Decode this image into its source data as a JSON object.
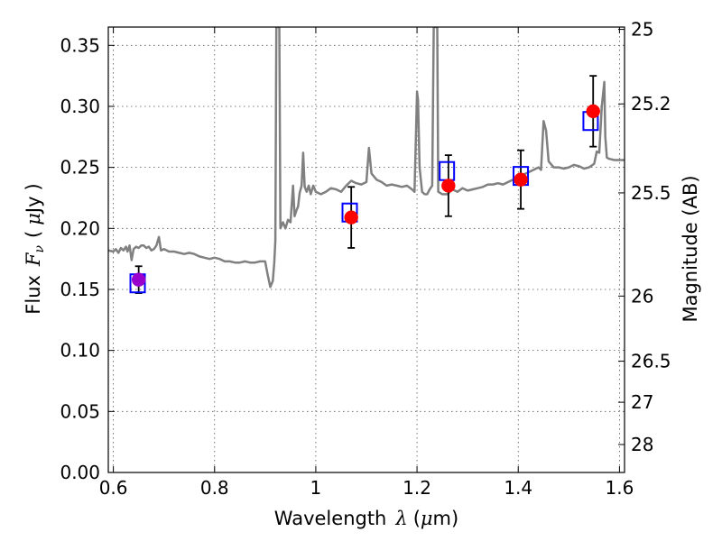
{
  "chart_data": {
    "type": "scatter",
    "title": "",
    "xlabel_parts": {
      "prefix": "Wavelength",
      "symbol": "λ",
      "unit_open": "(",
      "unit_mu": "μ",
      "unit_rest": "m)"
    },
    "ylabel_parts": {
      "prefix": "Flux",
      "symbol": "F",
      "subscript": "ν",
      "unit_open": "(",
      "unit_mu": "μ",
      "unit_rest": "Jy",
      "unit_close": ")"
    },
    "y2label": "Magnitude (AB)",
    "xlim": [
      0.59,
      1.61
    ],
    "ylim": [
      0.0,
      0.365
    ],
    "grid": true,
    "x_ticks": [
      {
        "value": 0.6,
        "label": "0.6"
      },
      {
        "value": 0.8,
        "label": "0.8"
      },
      {
        "value": 1.0,
        "label": "1"
      },
      {
        "value": 1.2,
        "label": "1.2"
      },
      {
        "value": 1.4,
        "label": "1.4"
      },
      {
        "value": 1.6,
        "label": "1.6"
      }
    ],
    "y_ticks": [
      {
        "value": 0.0,
        "label": "0.00"
      },
      {
        "value": 0.05,
        "label": "0.05"
      },
      {
        "value": 0.1,
        "label": "0.10"
      },
      {
        "value": 0.15,
        "label": "0.15"
      },
      {
        "value": 0.2,
        "label": "0.20"
      },
      {
        "value": 0.25,
        "label": "0.25"
      },
      {
        "value": 0.3,
        "label": "0.30"
      },
      {
        "value": 0.35,
        "label": "0.35"
      }
    ],
    "y2_ticks": [
      {
        "mag": 25,
        "label": "25"
      },
      {
        "mag": 25.2,
        "label": "25.2"
      },
      {
        "mag": 25.5,
        "label": "25.5"
      },
      {
        "mag": 26,
        "label": "26"
      },
      {
        "mag": 26.5,
        "label": "26.5"
      },
      {
        "mag": 27,
        "label": "27"
      },
      {
        "mag": 28,
        "label": "28"
      }
    ],
    "model_spectrum": {
      "color": "#808080",
      "points": [
        [
          0.59,
          0.182
        ],
        [
          0.6,
          0.181
        ],
        [
          0.605,
          0.183
        ],
        [
          0.61,
          0.18
        ],
        [
          0.615,
          0.184
        ],
        [
          0.62,
          0.182
        ],
        [
          0.625,
          0.185
        ],
        [
          0.628,
          0.181
        ],
        [
          0.632,
          0.186
        ],
        [
          0.636,
          0.174
        ],
        [
          0.64,
          0.183
        ],
        [
          0.645,
          0.185
        ],
        [
          0.65,
          0.184
        ],
        [
          0.655,
          0.186
        ],
        [
          0.66,
          0.186
        ],
        [
          0.665,
          0.184
        ],
        [
          0.67,
          0.185
        ],
        [
          0.675,
          0.182
        ],
        [
          0.68,
          0.183
        ],
        [
          0.685,
          0.186
        ],
        [
          0.69,
          0.193
        ],
        [
          0.694,
          0.182
        ],
        [
          0.7,
          0.183
        ],
        [
          0.71,
          0.181
        ],
        [
          0.72,
          0.181
        ],
        [
          0.73,
          0.18
        ],
        [
          0.74,
          0.179
        ],
        [
          0.75,
          0.18
        ],
        [
          0.76,
          0.179
        ],
        [
          0.77,
          0.177
        ],
        [
          0.78,
          0.176
        ],
        [
          0.79,
          0.175
        ],
        [
          0.8,
          0.176
        ],
        [
          0.81,
          0.175
        ],
        [
          0.82,
          0.173
        ],
        [
          0.83,
          0.173
        ],
        [
          0.84,
          0.172
        ],
        [
          0.85,
          0.172
        ],
        [
          0.86,
          0.173
        ],
        [
          0.87,
          0.172
        ],
        [
          0.88,
          0.172
        ],
        [
          0.89,
          0.173
        ],
        [
          0.9,
          0.173
        ],
        [
          0.905,
          0.162
        ],
        [
          0.91,
          0.152
        ],
        [
          0.915,
          0.157
        ],
        [
          0.918,
          0.172
        ],
        [
          0.92,
          0.19
        ],
        [
          0.922,
          0.365
        ],
        [
          0.928,
          0.365
        ],
        [
          0.93,
          0.2
        ],
        [
          0.935,
          0.205
        ],
        [
          0.94,
          0.2
        ],
        [
          0.945,
          0.207
        ],
        [
          0.95,
          0.205
        ],
        [
          0.955,
          0.235
        ],
        [
          0.958,
          0.21
        ],
        [
          0.962,
          0.215
        ],
        [
          0.965,
          0.218
        ],
        [
          0.968,
          0.229
        ],
        [
          0.972,
          0.235
        ],
        [
          0.975,
          0.262
        ],
        [
          0.978,
          0.234
        ],
        [
          0.982,
          0.23
        ],
        [
          0.986,
          0.235
        ],
        [
          0.99,
          0.228
        ],
        [
          0.995,
          0.235
        ],
        [
          1.0,
          0.23
        ],
        [
          1.01,
          0.228
        ],
        [
          1.02,
          0.23
        ],
        [
          1.03,
          0.233
        ],
        [
          1.04,
          0.232
        ],
        [
          1.05,
          0.23
        ],
        [
          1.06,
          0.235
        ],
        [
          1.07,
          0.239
        ],
        [
          1.08,
          0.237
        ],
        [
          1.09,
          0.236
        ],
        [
          1.1,
          0.238
        ],
        [
          1.105,
          0.266
        ],
        [
          1.11,
          0.245
        ],
        [
          1.12,
          0.24
        ],
        [
          1.13,
          0.238
        ],
        [
          1.14,
          0.235
        ],
        [
          1.15,
          0.236
        ],
        [
          1.16,
          0.235
        ],
        [
          1.17,
          0.234
        ],
        [
          1.18,
          0.235
        ],
        [
          1.19,
          0.232
        ],
        [
          1.195,
          0.23
        ],
        [
          1.2,
          0.312
        ],
        [
          1.202,
          0.305
        ],
        [
          1.205,
          0.25
        ],
        [
          1.21,
          0.23
        ],
        [
          1.215,
          0.228
        ],
        [
          1.22,
          0.228
        ],
        [
          1.225,
          0.232
        ],
        [
          1.23,
          0.235
        ],
        [
          1.233,
          0.365
        ],
        [
          1.24,
          0.365
        ],
        [
          1.242,
          0.23
        ],
        [
          1.25,
          0.228
        ],
        [
          1.26,
          0.228
        ],
        [
          1.27,
          0.232
        ],
        [
          1.28,
          0.23
        ],
        [
          1.29,
          0.233
        ],
        [
          1.3,
          0.231
        ],
        [
          1.31,
          0.232
        ],
        [
          1.32,
          0.233
        ],
        [
          1.33,
          0.234
        ],
        [
          1.34,
          0.236
        ],
        [
          1.35,
          0.236
        ],
        [
          1.36,
          0.237
        ],
        [
          1.37,
          0.236
        ],
        [
          1.38,
          0.238
        ],
        [
          1.39,
          0.24
        ],
        [
          1.4,
          0.243
        ],
        [
          1.41,
          0.244
        ],
        [
          1.42,
          0.246
        ],
        [
          1.43,
          0.248
        ],
        [
          1.44,
          0.25
        ],
        [
          1.445,
          0.248
        ],
        [
          1.45,
          0.288
        ],
        [
          1.455,
          0.28
        ],
        [
          1.46,
          0.255
        ],
        [
          1.47,
          0.25
        ],
        [
          1.48,
          0.25
        ],
        [
          1.49,
          0.249
        ],
        [
          1.5,
          0.25
        ],
        [
          1.51,
          0.252
        ],
        [
          1.52,
          0.251
        ],
        [
          1.53,
          0.249
        ],
        [
          1.54,
          0.25
        ],
        [
          1.55,
          0.253
        ],
        [
          1.555,
          0.263
        ],
        [
          1.56,
          0.262
        ],
        [
          1.565,
          0.3
        ],
        [
          1.57,
          0.32
        ],
        [
          1.572,
          0.275
        ],
        [
          1.575,
          0.258
        ],
        [
          1.58,
          0.257
        ],
        [
          1.59,
          0.256
        ],
        [
          1.6,
          0.256
        ],
        [
          1.61,
          0.256
        ]
      ]
    },
    "model_photometry": {
      "marker": "open-square",
      "color": "#0000ff",
      "x": [
        0.648,
        1.067,
        1.259,
        1.405,
        1.543
      ],
      "y": [
        0.155,
        0.213,
        0.247,
        0.243,
        0.288
      ]
    },
    "observed_photometry": {
      "marker": "filled-circle",
      "color": "#ff0000",
      "first_point_color": "#9900cc",
      "x": [
        0.65,
        1.07,
        1.262,
        1.405,
        1.548
      ],
      "y": [
        0.158,
        0.209,
        0.235,
        0.24,
        0.296
      ],
      "yerr": [
        0.011,
        0.025,
        0.025,
        0.024,
        0.029
      ]
    }
  }
}
